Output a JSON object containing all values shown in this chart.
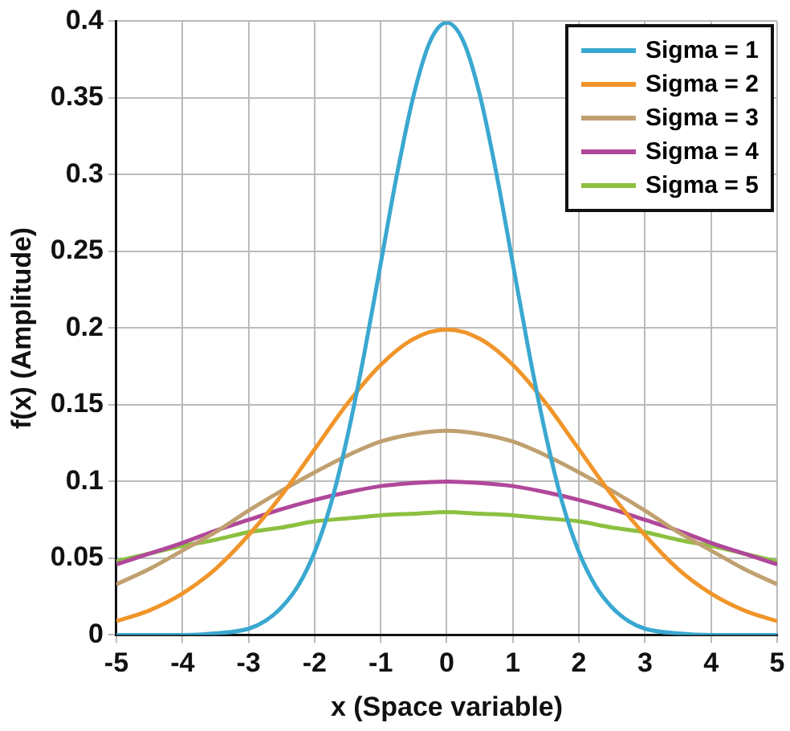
{
  "chart_data": {
    "type": "line",
    "xlabel": "x (Space variable)",
    "ylabel": "f(x) (Amplitude)",
    "x": [
      -5,
      -4.5,
      -4,
      -3.5,
      -3,
      -2.5,
      -2,
      -1.5,
      -1,
      -0.5,
      0,
      0.5,
      1,
      1.5,
      2,
      2.5,
      3,
      3.5,
      4,
      4.5,
      5
    ],
    "xlim": [
      -5,
      5
    ],
    "xticks": [
      -5,
      -4,
      -3,
      -2,
      -1,
      0,
      1,
      2,
      3,
      4,
      5
    ],
    "ylim": [
      0,
      0.4
    ],
    "yticks": [
      0,
      0.05,
      0.1,
      0.15,
      0.2,
      0.25,
      0.3,
      0.35,
      0.4
    ],
    "grid": true,
    "legend": "top right",
    "marker": "none",
    "line_style": "solid",
    "series": [
      {
        "name": "Sigma = 1",
        "color": "#3aa8d0",
        "x": [
          -5,
          -4.5,
          -4,
          -3.5,
          -3,
          -2.75,
          -2.5,
          -2.25,
          -2,
          -1.75,
          -1.5,
          -1.25,
          -1,
          -0.75,
          -0.5,
          -0.25,
          0,
          0.25,
          0.5,
          0.75,
          1,
          1.25,
          1.5,
          1.75,
          2,
          2.25,
          2.5,
          2.75,
          3,
          3.5,
          4,
          4.5,
          5
        ],
        "values": [
          0,
          0,
          0,
          0.001,
          0.004,
          0.009,
          0.018,
          0.032,
          0.054,
          0.086,
          0.13,
          0.183,
          0.242,
          0.301,
          0.352,
          0.387,
          0.399,
          0.387,
          0.352,
          0.301,
          0.242,
          0.183,
          0.13,
          0.086,
          0.054,
          0.032,
          0.018,
          0.009,
          0.004,
          0.001,
          0,
          0,
          0
        ]
      },
      {
        "name": "Sigma = 2",
        "color": "#f0952a",
        "values": [
          0.009,
          0.016,
          0.027,
          0.043,
          0.065,
          0.091,
          0.121,
          0.151,
          0.176,
          0.193,
          0.199,
          0.193,
          0.176,
          0.151,
          0.121,
          0.091,
          0.065,
          0.043,
          0.027,
          0.016,
          0.009
        ]
      },
      {
        "name": "Sigma = 3",
        "color": "#c0a070",
        "values": [
          0.033,
          0.043,
          0.055,
          0.067,
          0.081,
          0.094,
          0.106,
          0.117,
          0.126,
          0.131,
          0.133,
          0.131,
          0.126,
          0.117,
          0.106,
          0.094,
          0.081,
          0.067,
          0.055,
          0.043,
          0.033
        ]
      },
      {
        "name": "Sigma = 4",
        "color": "#b0489a",
        "values": [
          0.046,
          0.053,
          0.06,
          0.068,
          0.075,
          0.082,
          0.088,
          0.093,
          0.097,
          0.099,
          0.1,
          0.099,
          0.097,
          0.093,
          0.088,
          0.082,
          0.075,
          0.068,
          0.06,
          0.053,
          0.046
        ]
      },
      {
        "name": "Sigma = 5",
        "color": "#8cc040",
        "values": [
          0.048,
          0.053,
          0.058,
          0.062,
          0.067,
          0.07,
          0.074,
          0.076,
          0.078,
          0.079,
          0.08,
          0.079,
          0.078,
          0.076,
          0.074,
          0.07,
          0.067,
          0.062,
          0.058,
          0.053,
          0.048
        ]
      }
    ]
  }
}
